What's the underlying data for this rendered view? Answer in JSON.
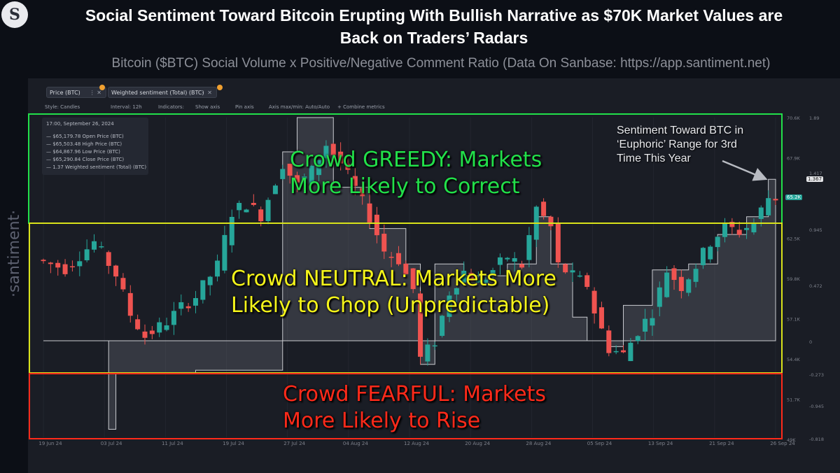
{
  "header": {
    "logo_glyph": "S",
    "title_line1": "Social Sentiment Toward Bitcoin Erupting With Bullish Narrative as $70K Market Values are",
    "title_line2": "Back on Traders’ Radars",
    "subtitle": "Bitcoin ($BTC) Social Volume x Positive/Negative Comment Ratio (Data On Sanbase: https://app.santiment.net)",
    "side_brand": "·santiment·"
  },
  "tabs": [
    {
      "label": "Price (BTC)",
      "badge": "1"
    },
    {
      "label": "Weighted sentiment (Total) (BTC)",
      "badge": "1"
    }
  ],
  "toolbar": {
    "style": "Style: Candles",
    "interval": "Interval: 12h",
    "indicators": "Indicators:",
    "show_axis": "Show axis",
    "pin_axis": "Pin axis",
    "axis_max_min": "Axis max/min: Auto/Auto",
    "combine": "+ Combine metrics"
  },
  "tooltip": {
    "date": "17:00, September 26, 2024",
    "rows": [
      "— $65,179.78 Open Price (BTC)",
      "— $65,503.48 High Price (BTC)",
      "— $64,867.96 Low Price (BTC)",
      "— $65,290.84 Close Price (BTC)",
      "— 1.37 Weighted sentiment (Total) (BTC)"
    ]
  },
  "zones": {
    "greedy": {
      "line1": "Crowd GREEDY: Markets",
      "line2": "More Likely to Correct",
      "color": "#22e04a"
    },
    "neutral": {
      "line1": "Crowd NEUTRAL: Markets More",
      "line2": "Likely to Chop (Unpredictable)",
      "color": "#f5f51a"
    },
    "fearful": {
      "line1": "Crowd FEARFUL: Markets",
      "line2": "More Likely to Rise",
      "color": "#ff2a1a"
    }
  },
  "annotation": {
    "line1": "Sentiment Toward BTC in",
    "line2": "‘Euphoric’ Range for 3rd",
    "line3": "Time This Year"
  },
  "colors": {
    "up": "#26a69a",
    "down": "#ef5350",
    "sentiment_fill": "#6b6e76",
    "greedy_border": "#22e04a",
    "neutral_border": "#d8e21a",
    "fearful_border": "#ff2a1a"
  },
  "chart_data": {
    "type": "candlestick",
    "x_ticks": [
      "19 Jun 24",
      "03 Jul 24",
      "11 Jul 24",
      "19 Jul 24",
      "27 Jul 24",
      "04 Aug 24",
      "12 Aug 24",
      "20 Aug 24",
      "28 Aug 24",
      "05 Sep 24",
      "13 Sep 24",
      "21 Sep 24",
      "26 Sep 24"
    ],
    "price_ticks": [
      "70.6K",
      "67.9K",
      "65.2K",
      "62.5K",
      "59.8K",
      "57.1K",
      "54.4K",
      "51.7K",
      "49K"
    ],
    "sentiment_ticks": [
      "1.89",
      "1.417",
      "0.945",
      "0.472",
      "0",
      "-0.273",
      "-0.945",
      "-0.818"
    ],
    "current_price_label": "65.2K",
    "current_sentiment_label": "1.367",
    "price_range": [
      49000,
      70600
    ],
    "sentiment_range": [
      -0.818,
      1.89
    ],
    "price_path": [
      [
        0,
        61000
      ],
      [
        4,
        60400
      ],
      [
        8,
        62200
      ],
      [
        11,
        60000
      ],
      [
        13,
        57300
      ],
      [
        15,
        55800
      ],
      [
        18,
        56800
      ],
      [
        20,
        57800
      ],
      [
        22,
        58500
      ],
      [
        25,
        60600
      ],
      [
        27,
        64200
      ],
      [
        29,
        64800
      ],
      [
        31,
        64000
      ],
      [
        34,
        67500
      ],
      [
        36,
        66000
      ],
      [
        38,
        67000
      ],
      [
        40,
        68800
      ],
      [
        42,
        67500
      ],
      [
        44,
        65800
      ],
      [
        46,
        63900
      ],
      [
        48,
        61600
      ],
      [
        50,
        61000
      ],
      [
        52,
        59000
      ],
      [
        53,
        54300
      ],
      [
        55,
        55500
      ],
      [
        57,
        58800
      ],
      [
        59,
        60200
      ],
      [
        61,
        59400
      ],
      [
        63,
        60300
      ],
      [
        65,
        61200
      ],
      [
        67,
        60600
      ],
      [
        69,
        64500
      ],
      [
        71,
        63200
      ],
      [
        72,
        60600
      ],
      [
        74,
        59900
      ],
      [
        76,
        59300
      ],
      [
        77,
        57500
      ],
      [
        79,
        55000
      ],
      [
        81,
        54600
      ],
      [
        83,
        56200
      ],
      [
        85,
        57500
      ],
      [
        87,
        60300
      ],
      [
        89,
        59200
      ],
      [
        91,
        60600
      ],
      [
        93,
        62200
      ],
      [
        95,
        63200
      ],
      [
        97,
        62900
      ],
      [
        99,
        63500
      ],
      [
        101,
        65200
      ]
    ],
    "sentiment_steps": [
      [
        0,
        0
      ],
      [
        9,
        -0.75
      ],
      [
        10,
        -0.27
      ],
      [
        21,
        -0.25
      ],
      [
        32,
        -0.25
      ],
      [
        33,
        1.6
      ],
      [
        35,
        1.89
      ],
      [
        37,
        1.89
      ],
      [
        40,
        1.3
      ],
      [
        45,
        0.95
      ],
      [
        50,
        0.65
      ],
      [
        52,
        -0.2
      ],
      [
        54,
        0.65
      ],
      [
        58,
        0.55
      ],
      [
        64,
        0.65
      ],
      [
        68,
        1.05
      ],
      [
        70,
        0.65
      ],
      [
        73,
        0.2
      ],
      [
        75,
        0.0
      ],
      [
        78,
        -0.05
      ],
      [
        80,
        0.3
      ],
      [
        84,
        0.6
      ],
      [
        87,
        0.6
      ],
      [
        89,
        0.65
      ],
      [
        93,
        0.9
      ],
      [
        97,
        1.05
      ],
      [
        100,
        1.367
      ],
      [
        101,
        1.367
      ]
    ]
  }
}
